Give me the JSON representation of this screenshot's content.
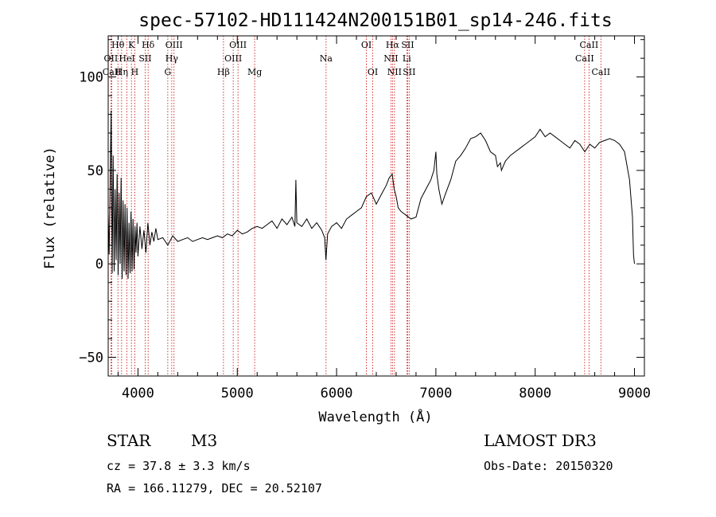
{
  "chart_data": {
    "type": "line",
    "title": "spec-57102-HD111424N200151B01_sp14-246.fits",
    "xlabel": "Wavelength (Å)",
    "ylabel": "Flux (relative)",
    "xlim": [
      3700,
      9100
    ],
    "ylim": [
      -60,
      122
    ],
    "x_ticks": [
      4000,
      5000,
      6000,
      7000,
      8000,
      9000
    ],
    "y_ticks": [
      -50,
      0,
      50,
      100
    ],
    "x_tick_labels": [
      "4000",
      "5000",
      "6000",
      "7000",
      "8000",
      "9000"
    ],
    "y_tick_labels": [
      "−50",
      "0",
      "50",
      "100"
    ],
    "series": [
      {
        "name": "spectrum",
        "x": [
          3700,
          3710,
          3720,
          3730,
          3740,
          3750,
          3760,
          3770,
          3780,
          3790,
          3800,
          3810,
          3820,
          3830,
          3840,
          3850,
          3860,
          3870,
          3880,
          3890,
          3900,
          3910,
          3920,
          3930,
          3940,
          3950,
          3960,
          3970,
          3980,
          3990,
          4000,
          4020,
          4040,
          4060,
          4080,
          4100,
          4120,
          4140,
          4160,
          4180,
          4200,
          4250,
          4300,
          4350,
          4400,
          4450,
          4500,
          4550,
          4600,
          4650,
          4700,
          4750,
          4800,
          4850,
          4900,
          4950,
          5000,
          5050,
          5100,
          5150,
          5200,
          5250,
          5300,
          5350,
          5400,
          5450,
          5500,
          5550,
          5580,
          5590,
          5600,
          5650,
          5700,
          5750,
          5800,
          5850,
          5880,
          5893,
          5910,
          5950,
          6000,
          6050,
          6100,
          6150,
          6200,
          6250,
          6300,
          6350,
          6400,
          6450,
          6500,
          6530,
          6560,
          6580,
          6600,
          6620,
          6650,
          6700,
          6750,
          6800,
          6850,
          6900,
          6950,
          6980,
          7000,
          7010,
          7030,
          7060,
          7100,
          7150,
          7200,
          7250,
          7300,
          7350,
          7400,
          7450,
          7500,
          7550,
          7600,
          7620,
          7650,
          7660,
          7700,
          7750,
          7800,
          7850,
          7900,
          7950,
          8000,
          8050,
          8100,
          8150,
          8200,
          8250,
          8300,
          8350,
          8400,
          8450,
          8500,
          8550,
          8600,
          8650,
          8700,
          8750,
          8800,
          8850,
          8900,
          8950,
          8980,
          8990,
          9000
        ],
        "y": [
          27,
          5,
          45,
          82,
          -5,
          58,
          -4,
          40,
          2,
          48,
          -6,
          38,
          0,
          46,
          -8,
          34,
          -4,
          32,
          -6,
          30,
          -8,
          22,
          -5,
          28,
          -4,
          24,
          -3,
          20,
          6,
          22,
          4,
          20,
          8,
          18,
          6,
          22,
          10,
          17,
          12,
          19,
          13,
          14,
          10,
          15,
          12,
          13,
          14,
          12,
          13,
          14,
          13,
          14,
          15,
          14,
          16,
          15,
          18,
          16,
          17,
          19,
          20,
          19,
          21,
          23,
          19,
          24,
          21,
          25,
          20,
          45,
          22,
          20,
          24,
          19,
          22,
          18,
          14,
          2,
          16,
          20,
          22,
          19,
          24,
          26,
          28,
          30,
          36,
          38,
          32,
          37,
          42,
          46,
          48,
          40,
          36,
          30,
          28,
          26,
          24,
          25,
          35,
          40,
          45,
          50,
          60,
          48,
          40,
          32,
          38,
          45,
          55,
          58,
          62,
          67,
          68,
          70,
          66,
          60,
          58,
          52,
          54,
          50,
          55,
          58,
          60,
          62,
          64,
          66,
          68,
          72,
          68,
          70,
          68,
          66,
          64,
          62,
          66,
          64,
          60,
          64,
          62,
          65,
          66,
          67,
          66,
          64,
          60,
          45,
          25,
          5,
          0
        ]
      }
    ],
    "spectral_lines": [
      {
        "name": "OII",
        "wavelength": 3727,
        "row": 1
      },
      {
        "name": "CaII",
        "wavelength": 3737,
        "row": 2
      },
      {
        "name": "Hθ",
        "wavelength": 3798,
        "row": 0
      },
      {
        "name": "Hη",
        "wavelength": 3835,
        "row": 2
      },
      {
        "name": "HeI",
        "wavelength": 3889,
        "row": 1
      },
      {
        "name": "K",
        "wavelength": 3934,
        "row": 0
      },
      {
        "name": "H",
        "wavelength": 3968,
        "row": 2
      },
      {
        "name": "SII",
        "wavelength": 4072,
        "row": 1
      },
      {
        "name": "Hδ",
        "wavelength": 4102,
        "row": 0
      },
      {
        "name": "G",
        "wavelength": 4300,
        "row": 2
      },
      {
        "name": "Hγ",
        "wavelength": 4340,
        "row": 1
      },
      {
        "name": "OIII",
        "wavelength": 4363,
        "row": 0
      },
      {
        "name": "Hβ",
        "wavelength": 4861,
        "row": 2
      },
      {
        "name": "OIII",
        "wavelength": 4959,
        "row": 1
      },
      {
        "name": "OIII",
        "wavelength": 5007,
        "row": 0
      },
      {
        "name": "Mg",
        "wavelength": 5175,
        "row": 2
      },
      {
        "name": "Na",
        "wavelength": 5894,
        "row": 1
      },
      {
        "name": "OI",
        "wavelength": 6300,
        "row": 0
      },
      {
        "name": "OI",
        "wavelength": 6364,
        "row": 2
      },
      {
        "name": "NII",
        "wavelength": 6548,
        "row": 1
      },
      {
        "name": "Hα",
        "wavelength": 6563,
        "row": 0
      },
      {
        "name": "NII",
        "wavelength": 6583,
        "row": 2
      },
      {
        "name": "Li",
        "wavelength": 6707,
        "row": 1
      },
      {
        "name": "SII",
        "wavelength": 6716,
        "row": 0
      },
      {
        "name": "SII",
        "wavelength": 6731,
        "row": 2
      },
      {
        "name": "CaII",
        "wavelength": 8498,
        "row": 1
      },
      {
        "name": "CaII",
        "wavelength": 8542,
        "row": 0
      },
      {
        "name": "CaII",
        "wavelength": 8662,
        "row": 2
      }
    ],
    "line_color": "#000000",
    "marker_color": "#cc0000"
  },
  "info": {
    "object_class": "STAR",
    "subclass": "M3",
    "survey": "LAMOST DR3",
    "redshift": "cz = 37.8 ± 3.3 km/s",
    "obs_date": "Obs-Date: 20150320",
    "coords": "RA = 166.11279, DEC =  20.52107"
  }
}
